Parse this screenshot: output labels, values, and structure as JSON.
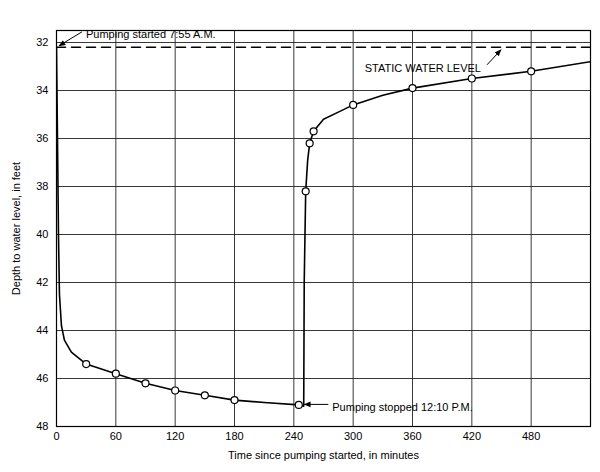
{
  "chart_data": {
    "type": "line",
    "x_label": "Time since pumping started, in minutes",
    "y_label": "Depth to water level, in feet",
    "xlim": [
      0,
      540
    ],
    "xticks": [
      0,
      60,
      120,
      180,
      240,
      300,
      360,
      420,
      480
    ],
    "ylim": [
      48,
      31.5
    ],
    "yticks": [
      32,
      34,
      36,
      38,
      40,
      42,
      44,
      46,
      48
    ],
    "grid": true,
    "series": [
      {
        "type": "line",
        "color": "#000000",
        "line_style": "solid",
        "x": [
          0,
          1,
          2,
          3,
          5,
          8,
          15,
          30,
          60,
          90,
          120,
          150,
          180,
          210,
          245,
          250,
          250.5,
          252,
          254,
          256,
          260,
          270,
          285,
          300,
          330,
          360,
          420,
          480,
          540
        ],
        "values": [
          32.2,
          36,
          40,
          42.5,
          43.8,
          44.4,
          44.9,
          45.4,
          45.8,
          46.2,
          46.5,
          46.7,
          46.9,
          47.0,
          47.1,
          47.15,
          42,
          38.2,
          36.9,
          36.2,
          35.7,
          35.2,
          34.9,
          34.6,
          34.2,
          33.9,
          33.5,
          33.2,
          32.8
        ]
      },
      {
        "type": "scatter",
        "color": "#000000",
        "marker": "circle",
        "x": [
          30,
          60,
          90,
          120,
          150,
          180,
          245,
          252,
          256,
          260,
          300,
          360,
          420,
          480
        ],
        "values": [
          45.4,
          45.8,
          46.2,
          46.5,
          46.7,
          46.9,
          47.1,
          38.2,
          36.2,
          35.7,
          34.6,
          33.9,
          33.5,
          33.2
        ]
      },
      {
        "type": "line",
        "color": "#000000",
        "line_style": "dashed",
        "x": [
          0,
          540
        ],
        "values": [
          32.2,
          32.2
        ]
      }
    ],
    "annotations": [
      {
        "text": "Pumping started 7:55 A.M.",
        "x": 0,
        "y": 32.2
      },
      {
        "text": "STATIC WATER LEVEL",
        "x": 450,
        "y": 32.2
      },
      {
        "text": "Pumping stopped 12:10 P.M.",
        "x": 245,
        "y": 47.1
      }
    ]
  }
}
